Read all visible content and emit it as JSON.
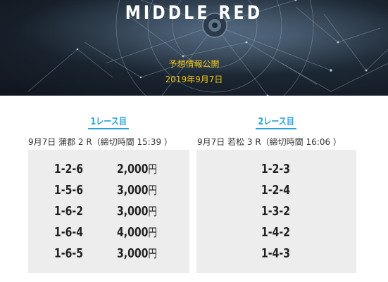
{
  "hero": {
    "brand": "MIDDLE RED",
    "subtitle": "予想情報公開",
    "date": "2019年9月7日"
  },
  "races": [
    {
      "heading": "1レース目",
      "info": "9月7日 蒲郡 2 R（締切時間 15:39 ）",
      "picks": [
        {
          "combo": "1-2-6",
          "amount": "2,000",
          "unit": "円"
        },
        {
          "combo": "1-5-6",
          "amount": "3,000",
          "unit": "円"
        },
        {
          "combo": "1-6-2",
          "amount": "3,000",
          "unit": "円"
        },
        {
          "combo": "1-6-4",
          "amount": "4,000",
          "unit": "円"
        },
        {
          "combo": "1-6-5",
          "amount": "3,000",
          "unit": "円"
        }
      ]
    },
    {
      "heading": "2レース目",
      "info": "9月7日 若松 3 R（締切時間 16:06 ）",
      "picks": [
        {
          "combo": "1-2-3"
        },
        {
          "combo": "1-2-4"
        },
        {
          "combo": "1-3-2"
        },
        {
          "combo": "1-4-2"
        },
        {
          "combo": "1-4-3"
        }
      ]
    }
  ],
  "colors": {
    "accent": "#2aa3d8",
    "hero_text": "#f0c419",
    "card_bg": "#ededed"
  }
}
